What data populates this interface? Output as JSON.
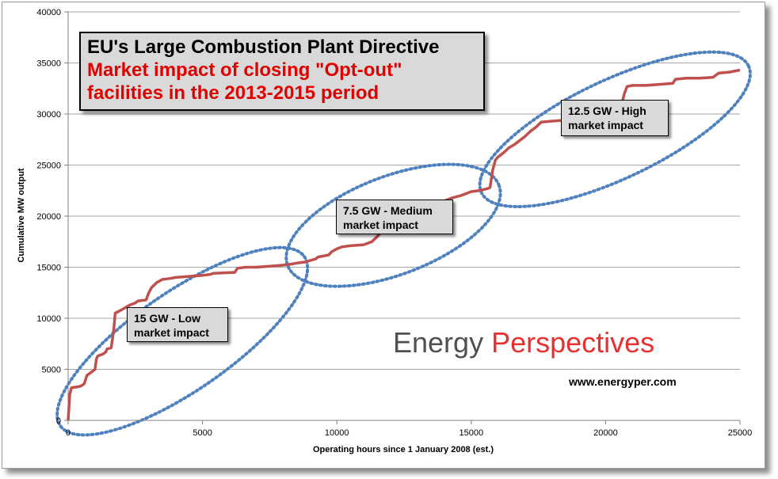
{
  "chart_data": {
    "type": "line",
    "title": "EU's Large Combustion Plant Directive",
    "subtitle": "Market impact of closing \"Opt-out\" facilities in the 2013-2015 period",
    "subtitle_lines": [
      "Market impact of closing \"Opt-out\"",
      "facilities in the 2013-2015 period"
    ],
    "xlabel": "Operating hours since 1 January 2008  (est.)",
    "ylabel": "Cumulative MW output",
    "xlim": [
      0,
      25000
    ],
    "ylim": [
      0,
      40000
    ],
    "x_ticks": [
      0,
      5000,
      10000,
      15000,
      20000,
      25000
    ],
    "y_ticks": [
      0,
      5000,
      10000,
      15000,
      20000,
      25000,
      30000,
      35000,
      40000
    ],
    "grid": "horizontal",
    "line_color": "#c0504d",
    "series": [
      {
        "points": [
          [
            0,
            0
          ],
          [
            60,
            2500
          ],
          [
            120,
            3200
          ],
          [
            400,
            3300
          ],
          [
            500,
            3400
          ],
          [
            600,
            3600
          ],
          [
            650,
            4000
          ],
          [
            700,
            4400
          ],
          [
            800,
            4600
          ],
          [
            900,
            4800
          ],
          [
            1000,
            5000
          ],
          [
            1050,
            6000
          ],
          [
            1100,
            6300
          ],
          [
            1300,
            6500
          ],
          [
            1400,
            6700
          ],
          [
            1450,
            7000
          ],
          [
            1600,
            7100
          ],
          [
            1650,
            8000
          ],
          [
            1700,
            9000
          ],
          [
            1750,
            10500
          ],
          [
            1900,
            10700
          ],
          [
            2100,
            11000
          ],
          [
            2300,
            11300
          ],
          [
            2500,
            11500
          ],
          [
            2600,
            11700
          ],
          [
            2900,
            11800
          ],
          [
            3000,
            12500
          ],
          [
            3100,
            13000
          ],
          [
            3300,
            13500
          ],
          [
            3500,
            13800
          ],
          [
            3800,
            13900
          ],
          [
            4000,
            14000
          ],
          [
            4500,
            14100
          ],
          [
            5000,
            14200
          ],
          [
            5300,
            14300
          ],
          [
            5400,
            14400
          ],
          [
            6200,
            14500
          ],
          [
            6300,
            14900
          ],
          [
            6600,
            15000
          ],
          [
            7000,
            15000
          ],
          [
            7500,
            15100
          ],
          [
            8000,
            15200
          ],
          [
            8300,
            15300
          ],
          [
            8500,
            15400
          ],
          [
            8800,
            15500
          ],
          [
            9200,
            15800
          ],
          [
            9300,
            16000
          ],
          [
            9700,
            16200
          ],
          [
            9800,
            16500
          ],
          [
            10000,
            16800
          ],
          [
            10200,
            17000
          ],
          [
            10500,
            17100
          ],
          [
            11000,
            17200
          ],
          [
            11300,
            17500
          ],
          [
            11500,
            18000
          ],
          [
            11700,
            18600
          ],
          [
            12000,
            19000
          ],
          [
            12300,
            19500
          ],
          [
            12700,
            20000
          ],
          [
            13000,
            20200
          ],
          [
            13200,
            20600
          ],
          [
            13500,
            20800
          ],
          [
            13800,
            21200
          ],
          [
            14000,
            21500
          ],
          [
            14300,
            21800
          ],
          [
            14600,
            22000
          ],
          [
            14800,
            22200
          ],
          [
            15000,
            22400
          ],
          [
            15300,
            22500
          ],
          [
            15600,
            22700
          ],
          [
            15700,
            22800
          ],
          [
            15800,
            24500
          ],
          [
            15900,
            25500
          ],
          [
            16000,
            25800
          ],
          [
            16200,
            26200
          ],
          [
            16400,
            26700
          ],
          [
            16600,
            27000
          ],
          [
            16800,
            27400
          ],
          [
            17000,
            27800
          ],
          [
            17200,
            28300
          ],
          [
            17400,
            28700
          ],
          [
            17600,
            29200
          ],
          [
            18000,
            29300
          ],
          [
            18500,
            29400
          ],
          [
            19000,
            29500
          ],
          [
            19500,
            29600
          ],
          [
            20000,
            29700
          ],
          [
            20400,
            30200
          ],
          [
            20600,
            31000
          ],
          [
            20700,
            32000
          ],
          [
            20800,
            32700
          ],
          [
            21000,
            32800
          ],
          [
            21500,
            32800
          ],
          [
            22000,
            32900
          ],
          [
            22500,
            33000
          ],
          [
            22600,
            33400
          ],
          [
            23000,
            33500
          ],
          [
            23500,
            33500
          ],
          [
            24000,
            33600
          ],
          [
            24200,
            34000
          ],
          [
            24600,
            34100
          ],
          [
            25000,
            34300
          ]
        ]
      }
    ],
    "annotations": [
      {
        "lines": [
          "15 GW - Low",
          "market impact"
        ]
      },
      {
        "lines": [
          "7.5 GW - Medium",
          "market impact"
        ]
      },
      {
        "lines": [
          "12.5 GW - High",
          "market impact"
        ]
      }
    ]
  },
  "branding": {
    "word1": "Energy",
    "word2": "Perspectives",
    "website": "www.energyper.com",
    "word1_color": "#505050",
    "word2_color": "#e83030"
  }
}
